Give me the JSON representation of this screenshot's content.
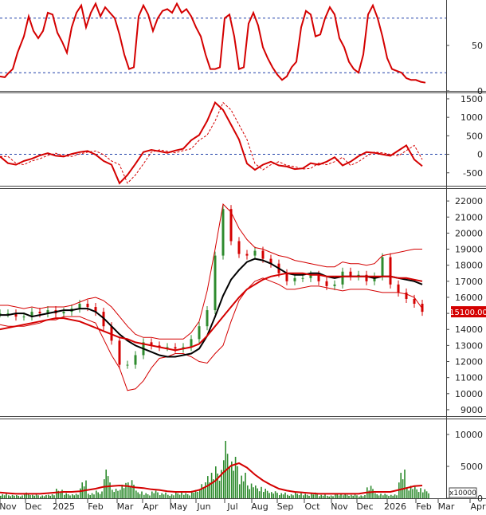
{
  "chart_data": [
    {
      "type": "line",
      "panel": "stochastic oscillator",
      "ylim": [
        0,
        100
      ],
      "yticks": [
        "50",
        "0"
      ],
      "reference_lines": [
        20,
        80
      ],
      "grid": false,
      "colors": {
        "main": "#d40000",
        "ref": "#1f3fa8"
      },
      "x": [
        0,
        6,
        10,
        16,
        22,
        30,
        36,
        42,
        48,
        54,
        60,
        66,
        72,
        78,
        84,
        90,
        96,
        102,
        108,
        114,
        120,
        126,
        132,
        138,
        144,
        150,
        156,
        162,
        168,
        174,
        180,
        186,
        192,
        198,
        204,
        210,
        216,
        222,
        228,
        234,
        240,
        246,
        252,
        258,
        264,
        270,
        276,
        282,
        288,
        294,
        300,
        306,
        312,
        318,
        324,
        330,
        336,
        342,
        348,
        354,
        360,
        366,
        372,
        378,
        384,
        390,
        396,
        402,
        408,
        414,
        420,
        426,
        432,
        438,
        444,
        450,
        456,
        462,
        468,
        474,
        480,
        486,
        492,
        498,
        504,
        510,
        516,
        522,
        528,
        534
      ],
      "values": [
        16,
        15,
        19,
        24,
        42,
        60,
        82,
        66,
        58,
        66,
        86,
        84,
        64,
        54,
        42,
        70,
        86,
        94,
        70,
        86,
        96,
        82,
        92,
        86,
        80,
        62,
        40,
        24,
        26,
        82,
        94,
        84,
        66,
        80,
        88,
        90,
        86,
        96,
        86,
        90,
        82,
        70,
        60,
        40,
        24,
        24,
        26,
        80,
        84,
        60,
        24,
        26,
        74,
        86,
        72,
        48,
        36,
        26,
        18,
        12,
        16,
        26,
        32,
        70,
        88,
        84,
        60,
        62,
        80,
        92,
        84,
        58,
        48,
        32,
        24,
        20,
        40,
        84,
        94,
        80,
        60,
        36,
        24,
        22,
        20,
        14,
        12,
        12,
        10,
        9
      ]
    },
    {
      "type": "line",
      "panel": "MACD",
      "ylim": [
        -850,
        1650
      ],
      "yticks": [
        "1500",
        "1000",
        "500",
        "0",
        "-500"
      ],
      "reference_lines": [
        0
      ],
      "grid": false,
      "colors": {
        "main": "#d40000",
        "signal": "#d40000",
        "ref": "#1f3fa8"
      },
      "x": [
        0,
        10,
        20,
        30,
        40,
        50,
        60,
        70,
        80,
        90,
        100,
        110,
        120,
        130,
        140,
        150,
        160,
        170,
        180,
        190,
        200,
        210,
        220,
        230,
        240,
        250,
        260,
        270,
        280,
        290,
        300,
        310,
        320,
        330,
        340,
        350,
        360,
        370,
        380,
        390,
        400,
        410,
        420,
        430,
        440,
        450,
        460,
        470,
        480,
        490,
        500,
        510,
        520,
        530
      ],
      "values": [
        -60,
        -240,
        -280,
        -180,
        -120,
        -30,
        30,
        -40,
        -60,
        10,
        60,
        90,
        -10,
        -180,
        -280,
        -780,
        -560,
        -260,
        60,
        120,
        80,
        40,
        100,
        150,
        380,
        520,
        900,
        1400,
        1200,
        800,
        400,
        -250,
        -420,
        -280,
        -200,
        -300,
        -330,
        -400,
        -380,
        -240,
        -280,
        -200,
        -80,
        -300,
        -200,
        -50,
        60,
        40,
        0,
        -40,
        100,
        240,
        -140,
        -320
      ]
    },
    {
      "type": "line",
      "panel": "price with Bollinger Bands and moving averages",
      "ylim": [
        8600,
        22800
      ],
      "yticks": [
        "22000",
        "21000",
        "20000",
        "19000",
        "18000",
        "17000",
        "16000",
        "15000",
        "14000",
        "13000",
        "12000",
        "11000",
        "10000",
        "9000"
      ],
      "last_price_label": "15100.00",
      "x_labels": [
        "Nov",
        "Dec",
        "2025",
        "Feb",
        "Mar",
        "Apr",
        "May",
        "Jun",
        "Jul",
        "Aug",
        "Sep",
        "Oct",
        "Nov",
        "Dec",
        "2026",
        "Feb",
        "Mar",
        "Apr"
      ],
      "grid": false,
      "x": [
        0,
        10,
        20,
        30,
        40,
        50,
        60,
        70,
        80,
        90,
        100,
        110,
        120,
        130,
        140,
        150,
        160,
        170,
        180,
        190,
        200,
        210,
        220,
        230,
        240,
        250,
        260,
        270,
        280,
        290,
        300,
        310,
        320,
        330,
        340,
        350,
        360,
        370,
        380,
        390,
        400,
        410,
        420,
        430,
        440,
        450,
        460,
        470,
        480,
        490,
        500,
        510,
        520,
        530
      ],
      "series": [
        {
          "values": [
            15000,
            15000,
            14800,
            14800,
            15100,
            15000,
            15200,
            15000,
            15100,
            15300,
            15600,
            15400,
            15100,
            14200,
            13300,
            11800,
            11800,
            12400,
            13200,
            13000,
            12900,
            12900,
            12800,
            12900,
            13400,
            14200,
            15200,
            18600,
            21500,
            19500,
            18700,
            18600,
            18900,
            18400,
            18100,
            17500,
            17000,
            17200,
            17200,
            17400,
            17000,
            16700,
            16800,
            17600,
            17300,
            17400,
            17000,
            17300,
            18500,
            16800,
            16300,
            15900,
            15600,
            15100
          ],
          "color": "#2e8b2e"
        },
        {
          "values": [
            14900,
            14900,
            15000,
            15000,
            14800,
            14900,
            15000,
            15100,
            15200,
            15200,
            15300,
            15300,
            15100,
            14700,
            14200,
            13700,
            13300,
            13000,
            12800,
            12600,
            12400,
            12300,
            12300,
            12400,
            12500,
            12800,
            13600,
            14800,
            16100,
            17100,
            17700,
            18200,
            18400,
            18300,
            18100,
            17800,
            17500,
            17400,
            17400,
            17500,
            17500,
            17300,
            17200,
            17300,
            17300,
            17300,
            17300,
            17200,
            17300,
            17300,
            17200,
            17100,
            17000,
            16800
          ],
          "color": "#000000"
        },
        {
          "values": [
            14000,
            14100,
            14200,
            14300,
            14400,
            14500,
            14600,
            14700,
            14700,
            14600,
            14500,
            14300,
            14100,
            13900,
            13700,
            13500,
            13400,
            13200,
            13100,
            13000,
            12900,
            12800,
            12700,
            12800,
            12900,
            13100,
            13600,
            14200,
            14800,
            15400,
            16000,
            16500,
            16800,
            17100,
            17300,
            17400,
            17500,
            17500,
            17500,
            17400,
            17400,
            17300,
            17300,
            17300,
            17300,
            17300,
            17300,
            17300,
            17300,
            17300,
            17200,
            17200,
            17100,
            17000
          ],
          "color": "#d40000"
        },
        {
          "values": [
            15500,
            15500,
            15400,
            15300,
            15400,
            15300,
            15400,
            15400,
            15400,
            15500,
            15700,
            15900,
            16000,
            15800,
            15400,
            14800,
            14200,
            13700,
            13500,
            13500,
            13400,
            13400,
            13400,
            13400,
            13800,
            14500,
            16400,
            19000,
            21800,
            21300,
            20300,
            19600,
            19100,
            19000,
            18800,
            18600,
            18500,
            18300,
            18200,
            18100,
            18000,
            17900,
            17900,
            18200,
            18100,
            18100,
            18000,
            18100,
            18600,
            18700,
            18800,
            18900,
            19000,
            19000
          ],
          "color": "#d40000"
        },
        {
          "values": [
            14300,
            14200,
            14200,
            14200,
            14300,
            14400,
            14600,
            14600,
            14800,
            14800,
            14800,
            14600,
            14400,
            13400,
            12400,
            11600,
            10200,
            10300,
            10800,
            11600,
            12200,
            12300,
            12500,
            12500,
            12300,
            12000,
            11900,
            12500,
            13000,
            14500,
            15800,
            16500,
            17000,
            17200,
            17000,
            16800,
            16500,
            16500,
            16600,
            16700,
            16700,
            16600,
            16500,
            16400,
            16500,
            16500,
            16500,
            16400,
            16300,
            16300,
            16300,
            16200,
            16000,
            15300
          ],
          "color": "#d40000"
        }
      ]
    },
    {
      "type": "bar",
      "panel": "volume",
      "ylim": [
        0,
        12500
      ],
      "yticks": [
        "10000",
        "5000",
        "0"
      ],
      "unit_label": "x10000",
      "grid": false,
      "x": [
        0,
        10,
        20,
        30,
        40,
        50,
        60,
        70,
        80,
        90,
        100,
        110,
        120,
        130,
        140,
        150,
        160,
        170,
        180,
        190,
        200,
        210,
        220,
        230,
        240,
        250,
        260,
        270,
        280,
        290,
        300,
        310,
        320,
        330,
        340,
        350,
        360,
        370,
        380,
        390,
        400,
        410,
        420,
        430,
        440,
        450,
        460,
        470,
        480,
        490,
        500,
        510,
        520,
        530
      ],
      "values": [
        700,
        600,
        500,
        900,
        600,
        500,
        700,
        1500,
        800,
        700,
        2800,
        900,
        1200,
        4500,
        1500,
        2400,
        3200,
        1200,
        800,
        1200,
        900,
        700,
        1000,
        800,
        1300,
        2500,
        4500,
        5000,
        9000,
        6500,
        4000,
        2600,
        2000,
        1500,
        1100,
        900,
        700,
        900,
        700,
        900,
        600,
        500,
        800,
        700,
        600,
        500,
        2200,
        800,
        700,
        600,
        4500,
        2200,
        1800,
        1400
      ],
      "moving_average": [
        900,
        800,
        700,
        700,
        700,
        700,
        800,
        900,
        1000,
        1000,
        1100,
        1300,
        1500,
        1800,
        1900,
        2000,
        1900,
        1700,
        1600,
        1400,
        1300,
        1100,
        1000,
        1000,
        1000,
        1300,
        1900,
        2700,
        4000,
        5100,
        5500,
        4800,
        3700,
        2800,
        2100,
        1500,
        1200,
        1000,
        900,
        800,
        700,
        700,
        700,
        700,
        700,
        700,
        900,
        1000,
        1000,
        1000,
        1300,
        1600,
        1900,
        2000
      ],
      "colors": {
        "bars": "#2e8b2e",
        "moving_average": "#d40000"
      }
    }
  ]
}
